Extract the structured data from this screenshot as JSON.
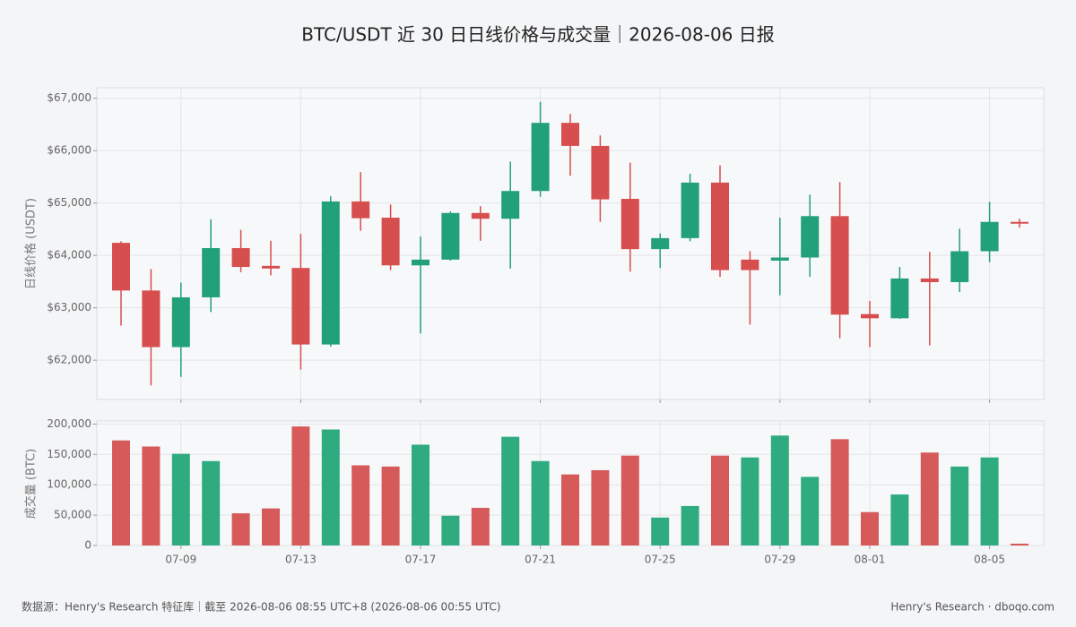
{
  "chart_data": [
    {
      "type": "candlestick",
      "title": "BTC/USDT 近 30 日日线价格与成交量｜2026-08-06 日报",
      "y_label": "日线价格 (USDT)",
      "up_color": "#22a077",
      "down_color": "#d64e4e",
      "x": [
        "07-07",
        "07-08",
        "07-09",
        "07-10",
        "07-11",
        "07-12",
        "07-13",
        "07-14",
        "07-15",
        "07-16",
        "07-17",
        "07-18",
        "07-19",
        "07-20",
        "07-21",
        "07-22",
        "07-23",
        "07-24",
        "07-25",
        "07-26",
        "07-27",
        "07-28",
        "07-29",
        "07-30",
        "07-31",
        "08-01",
        "08-02",
        "08-03",
        "08-04",
        "08-05",
        "08-06"
      ],
      "open": [
        64240,
        63330,
        62250,
        63200,
        64140,
        63800,
        63760,
        62300,
        65030,
        64720,
        63810,
        63920,
        64810,
        64700,
        65230,
        66530,
        66090,
        65080,
        64120,
        64330,
        65390,
        63920,
        63900,
        63960,
        64750,
        62880,
        62800,
        63560,
        63490,
        64080,
        64640
      ],
      "high": [
        64270,
        63740,
        63480,
        64690,
        64490,
        64280,
        64410,
        65130,
        65590,
        64970,
        64360,
        64840,
        64940,
        65790,
        66930,
        66700,
        66290,
        65770,
        64420,
        65560,
        65720,
        64080,
        64720,
        65160,
        65400,
        63130,
        63780,
        64070,
        64510,
        65020,
        64700
      ],
      "low": [
        62660,
        61520,
        61680,
        62920,
        63680,
        63620,
        61820,
        62260,
        64470,
        63720,
        62510,
        63900,
        64280,
        63750,
        65120,
        65520,
        64640,
        63690,
        63760,
        64270,
        63590,
        62680,
        63240,
        63590,
        62420,
        62250,
        62790,
        62280,
        63300,
        63870,
        64530
      ],
      "close": [
        63330,
        62250,
        63200,
        64140,
        63780,
        63750,
        62300,
        65030,
        64710,
        63810,
        63920,
        64810,
        64700,
        65230,
        66530,
        66090,
        65070,
        64120,
        64330,
        65390,
        63720,
        63720,
        63960,
        64750,
        62870,
        62800,
        63560,
        63490,
        64080,
        64640,
        64610
      ],
      "ylim": [
        61250,
        67200
      ],
      "yticks": [
        {
          "value": 62000,
          "label": "$62,000"
        },
        {
          "value": 63000,
          "label": "$63,000"
        },
        {
          "value": 64000,
          "label": "$64,000"
        },
        {
          "value": 65000,
          "label": "$65,000"
        },
        {
          "value": 66000,
          "label": "$66,000"
        },
        {
          "value": 67000,
          "label": "$67,000"
        }
      ],
      "grid": true
    },
    {
      "type": "bar",
      "y_label": "成交量 (BTC)",
      "values": [
        173000,
        163000,
        151000,
        139000,
        53000,
        61000,
        196000,
        191000,
        132000,
        130000,
        166000,
        49000,
        62000,
        179000,
        139000,
        117000,
        124000,
        148000,
        46000,
        65000,
        148000,
        145000,
        181000,
        113000,
        175000,
        55000,
        84000,
        153000,
        130000,
        145000,
        3000
      ],
      "colors": [
        "#d65a5a",
        "#d65a5a",
        "#2fab80",
        "#2fab80",
        "#d65a5a",
        "#d65a5a",
        "#d65a5a",
        "#2fab80",
        "#d65a5a",
        "#d65a5a",
        "#2fab80",
        "#2fab80",
        "#d65a5a",
        "#2fab80",
        "#2fab80",
        "#d65a5a",
        "#d65a5a",
        "#d65a5a",
        "#2fab80",
        "#2fab80",
        "#d65a5a",
        "#2fab80",
        "#2fab80",
        "#2fab80",
        "#d65a5a",
        "#d65a5a",
        "#2fab80",
        "#d65a5a",
        "#2fab80",
        "#2fab80",
        "#d65a5a"
      ],
      "ylim": [
        0,
        205000
      ],
      "yticks": [
        0,
        {
          "value": 50000,
          "label": "50,000"
        },
        {
          "value": 100000,
          "label": "100,000"
        },
        {
          "value": 150000,
          "label": "150,000"
        },
        {
          "value": 200000,
          "label": "200,000"
        }
      ],
      "xticks": [
        "07-09",
        "07-13",
        "07-17",
        "07-21",
        "07-25",
        "07-29",
        "08-01",
        "08-05"
      ],
      "grid": true
    }
  ],
  "footer": {
    "left": "数据源：Henry's Research 特征库｜截至 2026-08-06 08:55 UTC+8 (2026-08-06 00:55 UTC)",
    "right": "Henry's Research · dboqo.com"
  }
}
